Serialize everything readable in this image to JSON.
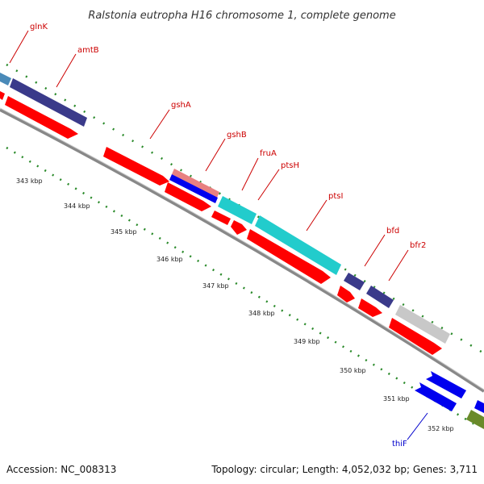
{
  "title": "Ralstonia eutropha H16 chromosome 1, complete genome",
  "footer": {
    "accession": "Accession: NC_008313",
    "summary": "Topology: circular; Length: 4,052,032 bp; Genes: 3,711"
  },
  "colors": {
    "forward_label": "#cc0000",
    "reverse_label": "#0000cc",
    "backbone": "#888888",
    "tick": "#2a8a2a",
    "cds": "#ff0000",
    "cds_dark": "#3a3a8a",
    "cds_cyan": "#22cccc",
    "cds_steel": "#4a8ab8",
    "cds_pink": "#e88080",
    "cds_blue": "#0000ee",
    "cds_gray": "#c8c8c8",
    "cds_olive": "#6a8a2a"
  },
  "kbp_ticks": [
    {
      "label": "343 kbp"
    },
    {
      "label": "344 kbp"
    },
    {
      "label": "345 kbp"
    },
    {
      "label": "346 kbp"
    },
    {
      "label": "347 kbp"
    },
    {
      "label": "348 kbp"
    },
    {
      "label": "349 kbp"
    },
    {
      "label": "350 kbp"
    },
    {
      "label": "351 kbp"
    },
    {
      "label": "352 kbp"
    }
  ],
  "gene_labels": [
    {
      "name": "glnK",
      "strand": "forward"
    },
    {
      "name": "amtB",
      "strand": "forward"
    },
    {
      "name": "gshA",
      "strand": "forward"
    },
    {
      "name": "gshB",
      "strand": "forward"
    },
    {
      "name": "fruA",
      "strand": "forward"
    },
    {
      "name": "ptsH",
      "strand": "forward"
    },
    {
      "name": "ptsI",
      "strand": "forward"
    },
    {
      "name": "bfd",
      "strand": "forward"
    },
    {
      "name": "bfr2",
      "strand": "forward"
    },
    {
      "name": "thiF",
      "strand": "reverse"
    }
  ]
}
